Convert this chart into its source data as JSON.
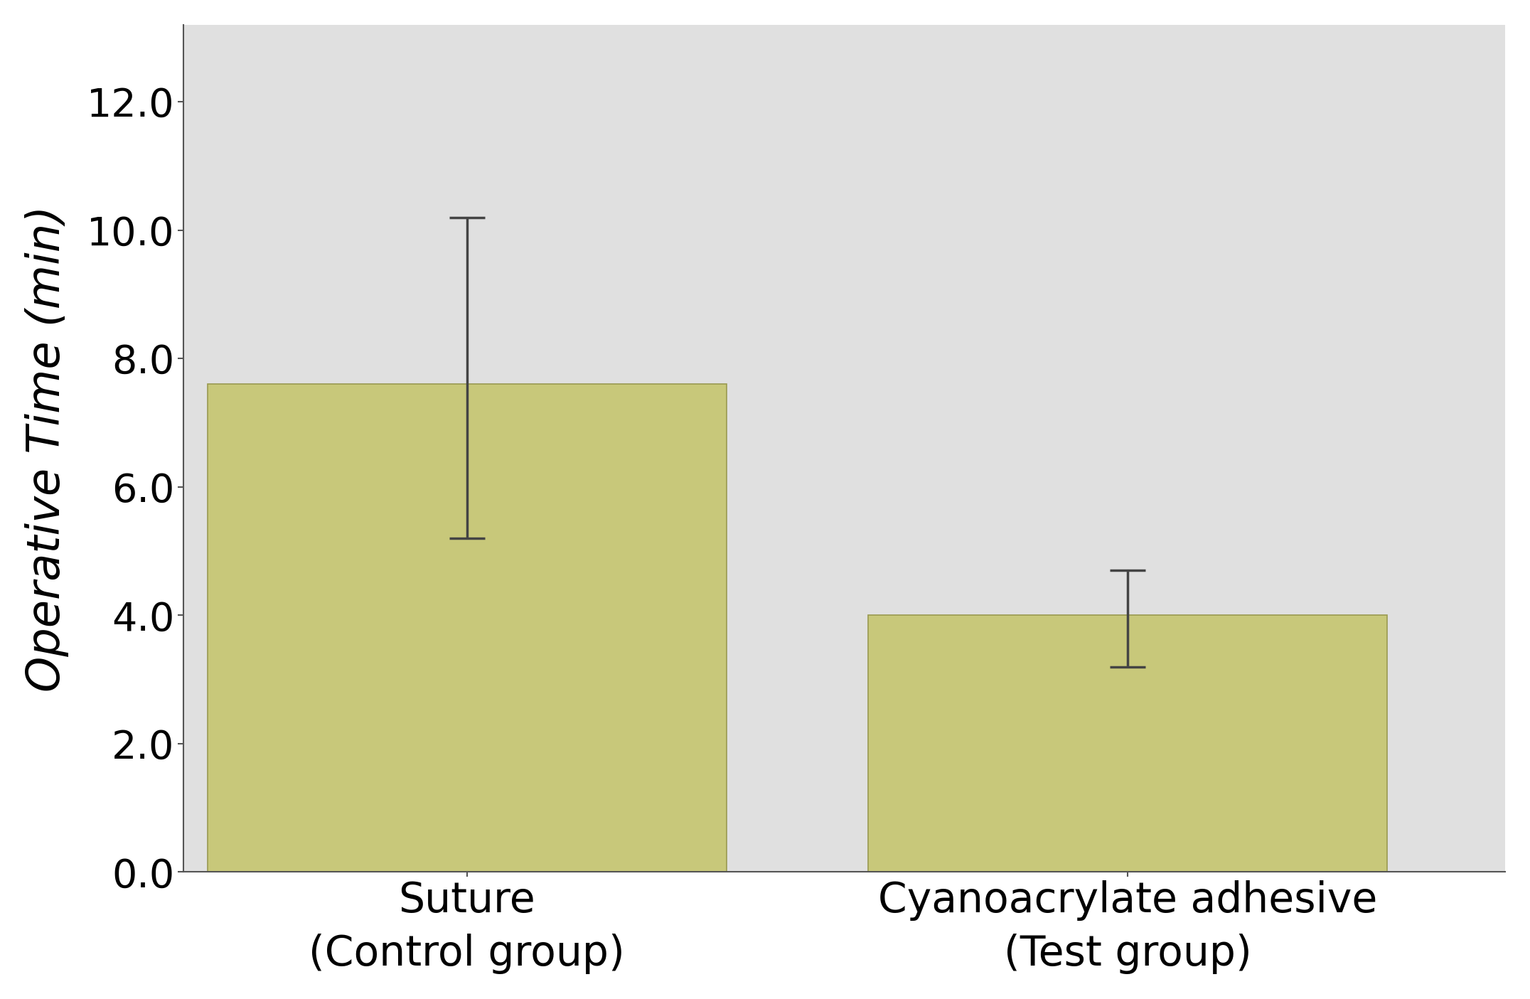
{
  "categories": [
    "Suture\n(Control group)",
    "Cyanoacrylate adhesive\n(Test group)"
  ],
  "values": [
    7.6,
    4.0
  ],
  "error_upper": [
    2.6,
    0.7
  ],
  "error_lower": [
    2.4,
    0.8
  ],
  "bar_color": "#c8c87a",
  "bar_edgecolor": "#9a9a50",
  "ylabel": "Operative Time (min)",
  "ylim": [
    0,
    13.2
  ],
  "yticks": [
    0.0,
    2.0,
    4.0,
    6.0,
    8.0,
    10.0,
    12.0
  ],
  "background_color": "#ffffff",
  "plot_bg_color": "#e0e0e0",
  "ylabel_fontsize": 46,
  "tick_fontsize": 40,
  "xlabel_fontsize": 42,
  "errorbar_color": "#444444",
  "errorbar_linewidth": 2.5,
  "errorbar_capsize": 18,
  "errorbar_capthick": 2.5,
  "bar_width": 0.55,
  "bar_positions": [
    0.3,
    1.0
  ],
  "xlim": [
    0.0,
    1.4
  ]
}
